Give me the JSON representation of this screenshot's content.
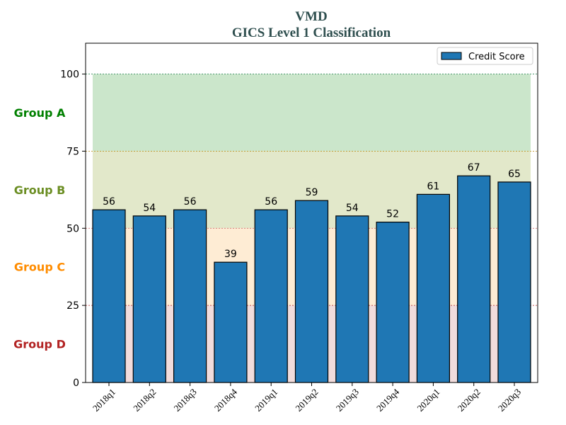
{
  "chart_data": {
    "type": "bar",
    "title": "VMD",
    "subtitle": "GICS Level 1 Classification",
    "categories": [
      "2018q1",
      "2018q2",
      "2018q3",
      "2018q4",
      "2019q1",
      "2019q2",
      "2019q3",
      "2019q4",
      "2020q1",
      "2020q2",
      "2020q3"
    ],
    "series": [
      {
        "name": "Credit Score",
        "values": [
          56,
          54,
          56,
          39,
          56,
          59,
          54,
          52,
          61,
          67,
          65
        ],
        "color": "#1f77b4"
      }
    ],
    "ylim": [
      0,
      110
    ],
    "yticks": [
      0,
      25,
      50,
      75,
      100
    ],
    "xlabel": "",
    "ylabel": "",
    "legend_position": "top-right",
    "bands": [
      {
        "label": "Group A",
        "from": 75,
        "to": 100,
        "fill": "#a8d5a8",
        "text_color": "#008000",
        "line_color": "#2e8b57"
      },
      {
        "label": "Group B",
        "from": 50,
        "to": 75,
        "fill": "#cfd9a6",
        "text_color": "#6b8e23",
        "line_color": "#b8860b"
      },
      {
        "label": "Group C",
        "from": 25,
        "to": 50,
        "fill": "#fde0b8",
        "text_color": "#ff8c00",
        "line_color": "#cd5c5c"
      },
      {
        "label": "Group D",
        "from": 0,
        "to": 25,
        "fill": "#e8c4c4",
        "text_color": "#b22222",
        "line_color": "#b22222"
      }
    ]
  }
}
